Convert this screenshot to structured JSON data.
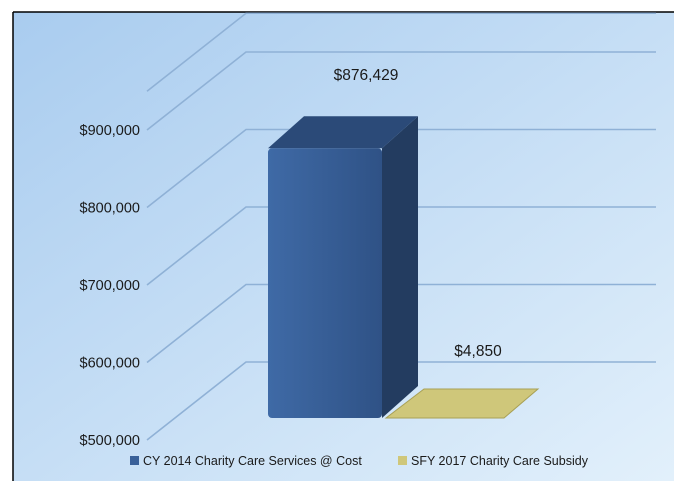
{
  "chart_data": {
    "type": "bar",
    "three_d": true,
    "categories": [
      "CY 2014 Charity Care Services @ Cost",
      "SFY 2017 Charity Care Subsidy"
    ],
    "values": [
      876429,
      4850
    ],
    "data_labels": [
      "$876,429",
      "$4,850"
    ],
    "y_tick_labels": [
      "$500,000",
      "$600,000",
      "$700,000",
      "$800,000",
      "$900,000"
    ],
    "ylim": [
      500000,
      950000
    ],
    "y_ticks": [
      500000,
      600000,
      700000,
      800000,
      900000,
      950000
    ],
    "grid": true,
    "legend_position": "bottom",
    "colors": {
      "series1_front": "#3a6199",
      "series1_side": "#233c60",
      "series1_top": "#2b4a78",
      "series2_top": "#cfc77a",
      "series2_side": "#a8a055",
      "background_top": "#a9ccef",
      "background_bottom": "#e2f0fb",
      "gridline": "#8fb1d6",
      "frame": "#000000"
    }
  }
}
